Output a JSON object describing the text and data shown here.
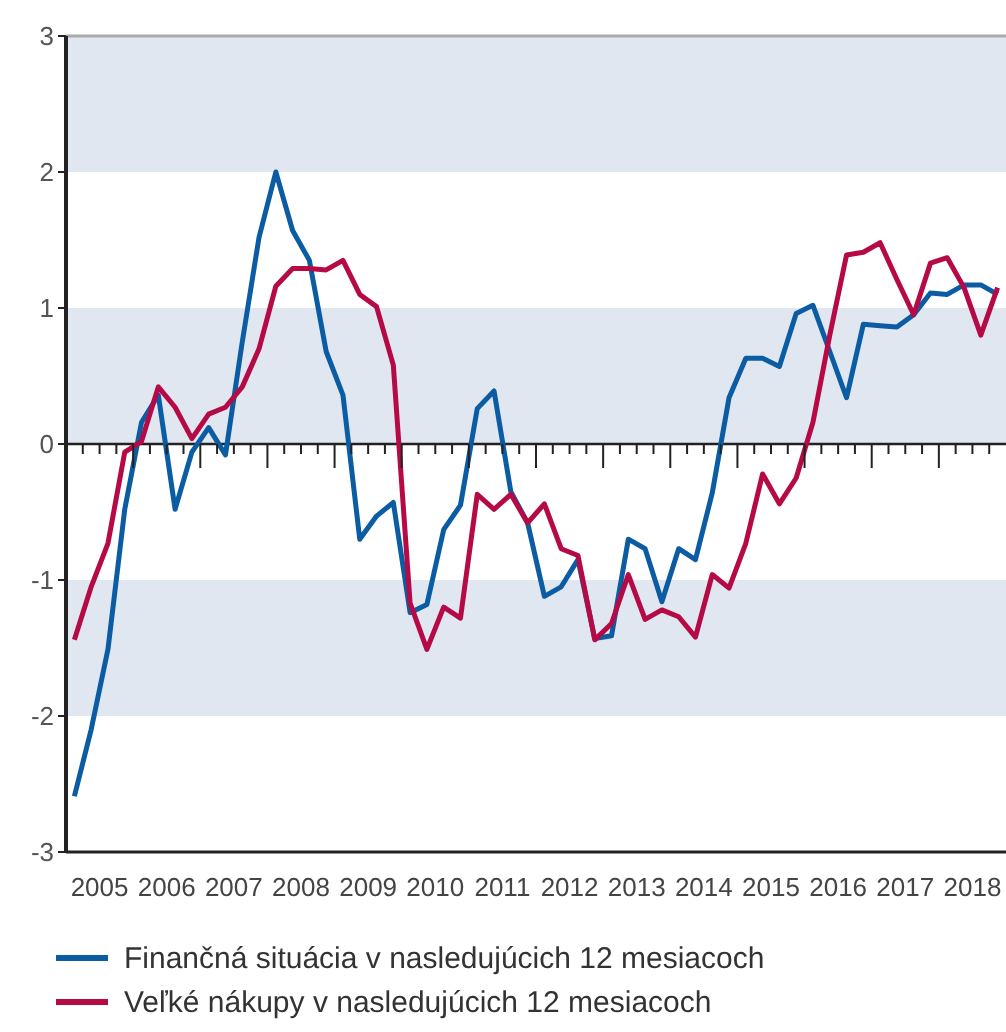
{
  "chart_data": {
    "type": "line",
    "x": [
      2005.125,
      2005.375,
      2005.625,
      2005.875,
      2006.125,
      2006.375,
      2006.625,
      2006.875,
      2007.125,
      2007.375,
      2007.625,
      2007.875,
      2008.125,
      2008.375,
      2008.625,
      2008.875,
      2009.125,
      2009.375,
      2009.625,
      2009.875,
      2010.125,
      2010.375,
      2010.625,
      2010.875,
      2011.125,
      2011.375,
      2011.625,
      2011.875,
      2012.125,
      2012.375,
      2012.625,
      2012.875,
      2013.125,
      2013.375,
      2013.625,
      2013.875,
      2014.125,
      2014.375,
      2014.625,
      2014.875,
      2015.125,
      2015.375,
      2015.625,
      2015.875,
      2016.125,
      2016.375,
      2016.625,
      2016.875,
      2017.125,
      2017.375,
      2017.625,
      2017.875,
      2018.125,
      2018.375,
      2018.625,
      2018.875
    ],
    "series": [
      {
        "name": "Finančná situácia v nasledujúcich 12 mesiacoch",
        "color": "#0b5ca3",
        "values": [
          -2.59,
          -2.1,
          -1.51,
          -0.48,
          0.16,
          0.36,
          -0.48,
          -0.06,
          0.12,
          -0.08,
          0.75,
          1.52,
          2.0,
          1.57,
          1.35,
          0.68,
          0.36,
          -0.7,
          -0.53,
          -0.43,
          -1.24,
          -1.18,
          -0.63,
          -0.45,
          0.26,
          0.39,
          -0.35,
          -0.58,
          -1.12,
          -1.05,
          -0.85,
          -1.43,
          -1.41,
          -0.7,
          -0.77,
          -1.16,
          -0.77,
          -0.85,
          -0.36,
          0.34,
          0.63,
          0.63,
          0.57,
          0.96,
          1.02,
          0.68,
          0.34,
          0.88,
          0.87,
          0.86,
          0.95,
          1.11,
          1.1,
          1.17,
          1.17,
          1.1
        ]
      },
      {
        "name": "Veľké nákupy v nasledujúcich 12 mesiacoch",
        "color": "#b50a45",
        "values": [
          -1.44,
          -1.05,
          -0.73,
          -0.06,
          0.02,
          0.42,
          0.27,
          0.04,
          0.22,
          0.27,
          0.42,
          0.7,
          1.16,
          1.29,
          1.29,
          1.28,
          1.35,
          1.1,
          1.01,
          0.58,
          -1.17,
          -1.51,
          -1.2,
          -1.28,
          -0.37,
          -0.48,
          -0.37,
          -0.58,
          -0.44,
          -0.77,
          -0.82,
          -1.44,
          -1.32,
          -0.96,
          -1.29,
          -1.22,
          -1.27,
          -1.42,
          -0.96,
          -1.06,
          -0.73,
          -0.22,
          -0.44,
          -0.25,
          0.16,
          0.8,
          1.39,
          1.41,
          1.48,
          1.21,
          0.95,
          1.33,
          1.37,
          1.15,
          0.8,
          1.15
        ]
      }
    ],
    "xlim": [
      2005,
      2019
    ],
    "xticks": [
      {
        "value": 2005,
        "label": null
      },
      {
        "value": 2005.25,
        "label": null
      },
      {
        "value": 2005.5,
        "label": "2005"
      },
      {
        "value": 2005.75,
        "label": null
      },
      {
        "value": 2006,
        "label": null
      },
      {
        "value": 2006.25,
        "label": null
      },
      {
        "value": 2006.5,
        "label": "2006"
      },
      {
        "value": 2006.75,
        "label": null
      },
      {
        "value": 2007,
        "label": null
      },
      {
        "value": 2007.25,
        "label": null
      },
      {
        "value": 2007.5,
        "label": "2007"
      },
      {
        "value": 2007.75,
        "label": null
      },
      {
        "value": 2008,
        "label": null
      },
      {
        "value": 2008.25,
        "label": null
      },
      {
        "value": 2008.5,
        "label": "2008"
      },
      {
        "value": 2008.75,
        "label": null
      },
      {
        "value": 2009,
        "label": null
      },
      {
        "value": 2009.25,
        "label": null
      },
      {
        "value": 2009.5,
        "label": "2009"
      },
      {
        "value": 2009.75,
        "label": null
      },
      {
        "value": 2010,
        "label": null
      },
      {
        "value": 2010.25,
        "label": null
      },
      {
        "value": 2010.5,
        "label": "2010"
      },
      {
        "value": 2010.75,
        "label": null
      },
      {
        "value": 2011,
        "label": null
      },
      {
        "value": 2011.25,
        "label": null
      },
      {
        "value": 2011.5,
        "label": "2011"
      },
      {
        "value": 2011.75,
        "label": null
      },
      {
        "value": 2012,
        "label": null
      },
      {
        "value": 2012.25,
        "label": null
      },
      {
        "value": 2012.5,
        "label": "2012"
      },
      {
        "value": 2012.75,
        "label": null
      },
      {
        "value": 2013,
        "label": null
      },
      {
        "value": 2013.25,
        "label": null
      },
      {
        "value": 2013.5,
        "label": "2013"
      },
      {
        "value": 2013.75,
        "label": null
      },
      {
        "value": 2014,
        "label": null
      },
      {
        "value": 2014.25,
        "label": null
      },
      {
        "value": 2014.5,
        "label": "2014"
      },
      {
        "value": 2014.75,
        "label": null
      },
      {
        "value": 2015,
        "label": null
      },
      {
        "value": 2015.25,
        "label": null
      },
      {
        "value": 2015.5,
        "label": "2015"
      },
      {
        "value": 2015.75,
        "label": null
      },
      {
        "value": 2016,
        "label": null
      },
      {
        "value": 2016.25,
        "label": null
      },
      {
        "value": 2016.5,
        "label": "2016"
      },
      {
        "value": 2016.75,
        "label": null
      },
      {
        "value": 2017,
        "label": null
      },
      {
        "value": 2017.25,
        "label": null
      },
      {
        "value": 2017.5,
        "label": "2017"
      },
      {
        "value": 2017.75,
        "label": null
      },
      {
        "value": 2018,
        "label": null
      },
      {
        "value": 2018.25,
        "label": null
      },
      {
        "value": 2018.5,
        "label": "2018"
      },
      {
        "value": 2018.75,
        "label": null
      }
    ],
    "ylim": [
      -3,
      3
    ],
    "yticks": [
      -3,
      -2,
      -1,
      0,
      1,
      2,
      3
    ],
    "bands": [
      {
        "axis": "y",
        "from": 2,
        "to": 3,
        "color": "#e1e7f1"
      },
      {
        "axis": "y",
        "from": 0,
        "to": 1,
        "color": "#e1e7f1"
      },
      {
        "axis": "y",
        "from": -2,
        "to": -1,
        "color": "#e1e7f1"
      }
    ],
    "ref_lines": [
      {
        "axis": "y",
        "value": 0,
        "color": "#222222"
      }
    ],
    "grid": false,
    "legend": "bottom",
    "marker": "none",
    "line_style": "solid"
  }
}
